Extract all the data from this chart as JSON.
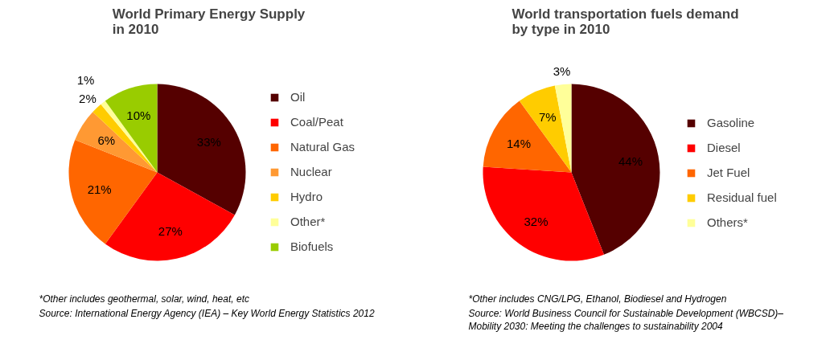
{
  "chart_data": [
    {
      "type": "pie",
      "title": "World Primary Energy Supply\nin 2010",
      "categories": [
        "Oil",
        "Coal/Peat",
        "Natural Gas",
        "Nuclear",
        "Hydro",
        "Other*",
        "Biofuels"
      ],
      "values": [
        33,
        27,
        21,
        6,
        2,
        1,
        10
      ],
      "colors": [
        "#550000",
        "#ff0000",
        "#ff6600",
        "#ff9933",
        "#ffcc00",
        "#ffff99",
        "#99cc00"
      ],
      "value_labels": [
        "33%",
        "27%",
        "21%",
        "6%",
        "2%",
        "1%",
        "10%"
      ],
      "legend": "right",
      "annotations": [
        "*Other includes geothermal, solar, wind, heat, etc",
        "Source: International Energy Agency (IEA) – Key World Energy Statistics 2012"
      ]
    },
    {
      "type": "pie",
      "title": "World transportation fuels demand\nby type in 2010",
      "categories": [
        "Gasoline",
        "Diesel",
        "Jet Fuel",
        "Residual fuel",
        "Others*"
      ],
      "values": [
        44,
        32,
        14,
        7,
        3
      ],
      "colors": [
        "#550000",
        "#ff0000",
        "#ff6600",
        "#ffcc00",
        "#ffff99"
      ],
      "value_labels": [
        "44%",
        "32%",
        "14%",
        "7%",
        "3%"
      ],
      "legend": "right",
      "annotations": [
        "*Other includes CNG/LPG, Ethanol, Biodiesel and Hydrogen",
        "Source: World Business Council for Sustainable Development (WBCSD)–\nMobility 2030: Meeting the challenges to sustainability 2004"
      ]
    }
  ]
}
